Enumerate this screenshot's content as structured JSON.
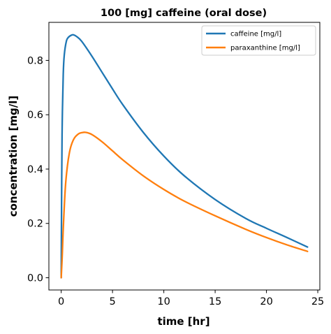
{
  "chart_data": {
    "type": "line",
    "title": "100 [mg] caffeine (oral dose)",
    "xlabel": "time [hr]",
    "ylabel": "concentration [mg/l]",
    "xlim": [
      -1.2,
      25.2
    ],
    "ylim": [
      -0.045,
      0.94
    ],
    "xticks": [
      0,
      5,
      10,
      15,
      20,
      25
    ],
    "yticks": [
      0.0,
      0.2,
      0.4,
      0.6,
      0.8
    ],
    "xtick_labels": [
      "0",
      "5",
      "10",
      "15",
      "20",
      "25"
    ],
    "ytick_labels": [
      "0.0",
      "0.2",
      "0.4",
      "0.6",
      "0.8"
    ],
    "grid": false,
    "legend_position": "top-right",
    "series": [
      {
        "name": "caffeine [mg/l]",
        "color": "#1f77b4",
        "x": [
          0,
          0.05,
          0.1,
          0.2,
          0.3,
          0.5,
          0.7,
          1.0,
          1.2,
          1.5,
          2,
          3,
          4,
          5,
          6,
          8,
          10,
          12,
          15,
          18,
          20,
          22,
          24
        ],
        "y": [
          0,
          0.36,
          0.57,
          0.75,
          0.82,
          0.87,
          0.885,
          0.893,
          0.894,
          0.888,
          0.87,
          0.815,
          0.755,
          0.695,
          0.637,
          0.535,
          0.448,
          0.375,
          0.288,
          0.218,
          0.182,
          0.148,
          0.113
        ]
      },
      {
        "name": "paraxanthine [mg/l]",
        "color": "#ff7f0e",
        "x": [
          0,
          0.1,
          0.2,
          0.4,
          0.6,
          0.8,
          1.0,
          1.3,
          1.7,
          2.0,
          2.4,
          3,
          4,
          5,
          6,
          8,
          10,
          12,
          15,
          18,
          20,
          22,
          24
        ],
        "y": [
          0,
          0.08,
          0.18,
          0.33,
          0.41,
          0.46,
          0.49,
          0.515,
          0.53,
          0.534,
          0.535,
          0.527,
          0.5,
          0.467,
          0.434,
          0.375,
          0.325,
          0.282,
          0.228,
          0.178,
          0.148,
          0.121,
          0.097
        ]
      }
    ]
  }
}
